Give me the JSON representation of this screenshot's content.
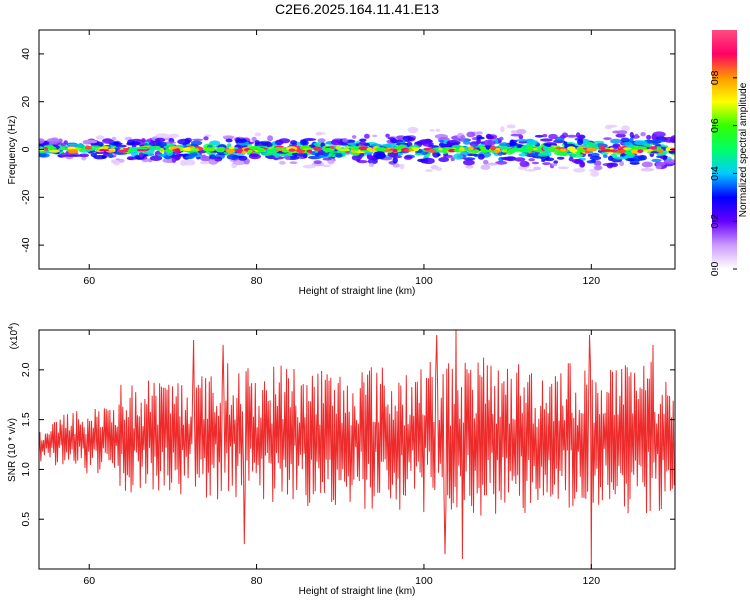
{
  "chart_data": [
    {
      "type": "heatmap",
      "title": "C2E6.2025.164.11.41.E13",
      "xlabel": "Height of straight line (km)",
      "ylabel": "Frequency (Hz)",
      "xlim": [
        54,
        130
      ],
      "ylim": [
        -50,
        50
      ],
      "xticks": [
        60,
        80,
        100,
        120
      ],
      "yticks": [
        40,
        20,
        0,
        -20,
        -40
      ],
      "ridge_center_hz": 0,
      "ridge_halfwidth_hz": 4,
      "colorbar": {
        "label": "Normalized spectral amplitude",
        "range": [
          0.0,
          1.0
        ],
        "ticks": [
          "0.0",
          "0.2",
          "0.4",
          "0.6",
          "0.8"
        ],
        "colors": [
          "#ffffff",
          "#cc99ff",
          "#6600ff",
          "#0000ff",
          "#00ccff",
          "#00ff66",
          "#33ff00",
          "#ffff00",
          "#ff9900",
          "#ff0066",
          "#ff4d80"
        ]
      }
    },
    {
      "type": "line",
      "xlabel": "Height of straight line (km)",
      "ylabel": "SNR (10 * v/v)",
      "multiplier": "(x10",
      "multiplier_exp": "4",
      "multiplier_close": ")",
      "xlim": [
        54,
        130
      ],
      "ylim": [
        0,
        2.4
      ],
      "xticks": [
        60,
        80,
        100,
        120
      ],
      "yticks": [
        0.5,
        1.0,
        1.5,
        2.0
      ],
      "ytick_labels": [
        "0.5",
        "1.0",
        "1.5",
        "2.0"
      ],
      "line_color": "#ee2b2b",
      "x": [
        54,
        56,
        58,
        60,
        62,
        64,
        66,
        68,
        70,
        72,
        74,
        76,
        78,
        80,
        82,
        84,
        86,
        88,
        90,
        92,
        94,
        96,
        98,
        100,
        102,
        104,
        106,
        108,
        110,
        112,
        114,
        116,
        118,
        120,
        122,
        124,
        126,
        128,
        130
      ],
      "y": [
        1.22,
        1.28,
        1.3,
        1.26,
        1.3,
        1.33,
        1.27,
        1.35,
        1.32,
        1.36,
        1.3,
        1.4,
        1.38,
        1.3,
        1.35,
        1.37,
        1.31,
        1.33,
        1.27,
        1.34,
        1.33,
        1.27,
        1.3,
        1.34,
        1.27,
        1.33,
        1.35,
        1.31,
        1.3,
        1.33,
        1.27,
        1.36,
        1.32,
        1.3,
        1.36,
        1.27,
        1.31,
        1.34,
        1.3
      ],
      "spread": [
        0.2,
        0.25,
        0.3,
        0.35,
        0.45,
        0.55,
        0.6,
        0.6,
        0.6,
        0.62,
        0.65,
        0.68,
        0.7,
        0.7,
        0.72,
        0.72,
        0.74,
        0.74,
        0.74,
        0.74,
        0.75,
        0.75,
        0.76,
        0.78,
        0.8,
        0.8,
        0.8,
        0.8,
        0.78,
        0.78,
        0.78,
        0.76,
        0.78,
        0.8,
        0.78,
        0.78,
        0.78,
        0.76,
        0.76
      ],
      "peaks": [
        [
          72.5,
          2.3
        ],
        [
          76.0,
          2.25
        ],
        [
          78.5,
          0.25
        ],
        [
          101.5,
          2.35
        ],
        [
          102.5,
          0.15
        ],
        [
          103.8,
          2.4
        ],
        [
          104.6,
          0.1
        ],
        [
          119.8,
          2.35
        ],
        [
          120.0,
          0.0
        ],
        [
          127.4,
          2.25
        ]
      ]
    }
  ]
}
